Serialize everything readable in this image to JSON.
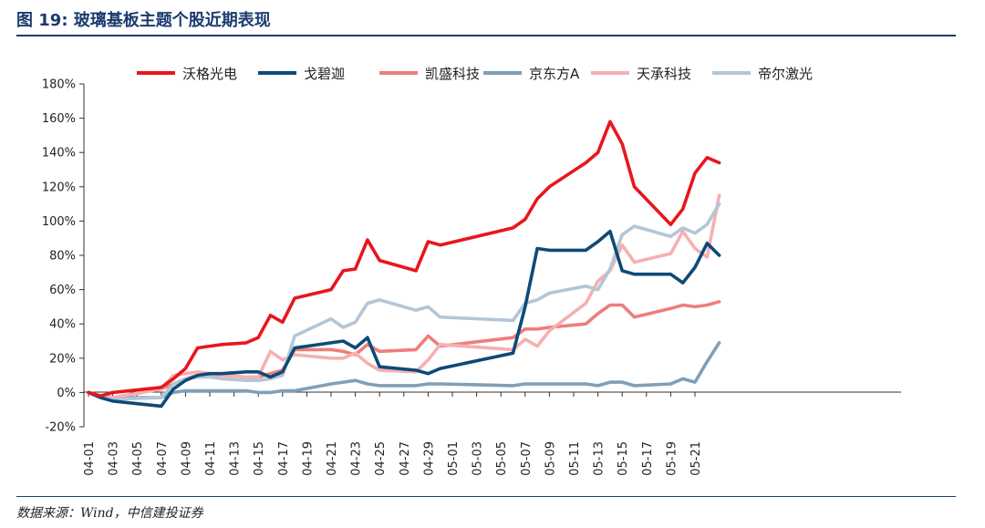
{
  "header": {
    "title": "图 19:  玻璃基板主题个股近期表现"
  },
  "footer": {
    "source": "数据来源：Wind，中信建投证券"
  },
  "chart_data": {
    "type": "line",
    "ylim": [
      -0.2,
      1.8
    ],
    "yticks": [
      -0.2,
      0,
      0.2,
      0.4,
      0.6,
      0.8,
      1.0,
      1.2,
      1.4,
      1.6,
      1.8
    ],
    "ytick_labels": [
      "-20%",
      "0%",
      "20%",
      "40%",
      "60%",
      "80%",
      "100%",
      "120%",
      "140%",
      "160%",
      "180%"
    ],
    "x": [
      "04-01",
      "04-02",
      "04-03",
      "04-07",
      "04-08",
      "04-09",
      "04-10",
      "04-11",
      "04-12",
      "04-14",
      "04-15",
      "04-16",
      "04-17",
      "04-18",
      "04-21",
      "04-22",
      "04-23",
      "04-24",
      "04-25",
      "04-28",
      "04-29",
      "04-30",
      "05-06",
      "05-07",
      "05-08",
      "05-09",
      "05-12",
      "05-13",
      "05-14",
      "05-15",
      "05-16",
      "05-19",
      "05-20",
      "05-21",
      "05-22",
      "05-23"
    ],
    "xtick_labels": [
      "04-01",
      "04-03",
      "04-05",
      "04-07",
      "04-09",
      "04-11",
      "04-13",
      "04-15",
      "04-17",
      "04-19",
      "04-21",
      "04-23",
      "04-25",
      "04-27",
      "04-29",
      "05-01",
      "05-03",
      "05-05",
      "05-07",
      "05-09",
      "05-11",
      "05-13",
      "05-15",
      "05-17",
      "05-19",
      "05-21"
    ],
    "legend_position": "top",
    "series": [
      {
        "name": "沃格光电",
        "color": "#e8161c",
        "values": [
          0,
          -0.02,
          0,
          0.03,
          0.08,
          0.14,
          0.26,
          0.27,
          0.28,
          0.29,
          0.32,
          0.45,
          0.41,
          0.55,
          0.6,
          0.71,
          0.72,
          0.89,
          0.77,
          0.71,
          0.88,
          0.86,
          0.96,
          1.01,
          1.13,
          1.2,
          1.34,
          1.4,
          1.58,
          1.45,
          1.2,
          0.98,
          1.07,
          1.28,
          1.37,
          1.34
        ]
      },
      {
        "name": "戈碧迦",
        "color": "#0d4a78",
        "values": [
          0,
          -0.03,
          -0.05,
          -0.08,
          0.02,
          0.07,
          0.1,
          0.11,
          0.11,
          0.12,
          0.12,
          0.09,
          0.12,
          0.26,
          0.29,
          0.3,
          0.26,
          0.32,
          0.15,
          0.13,
          0.11,
          0.14,
          0.23,
          0.5,
          0.84,
          0.83,
          0.83,
          0.88,
          0.94,
          0.71,
          0.69,
          0.69,
          0.64,
          0.73,
          0.87,
          0.8
        ]
      },
      {
        "name": "凯盛科技",
        "color": "#ef7d7d",
        "values": [
          0,
          -0.02,
          -0.03,
          0.02,
          0.05,
          0.08,
          0.1,
          0.1,
          0.1,
          0.09,
          0.09,
          0.11,
          0.13,
          0.25,
          0.25,
          0.24,
          0.22,
          0.28,
          0.24,
          0.25,
          0.33,
          0.27,
          0.32,
          0.37,
          0.37,
          0.38,
          0.4,
          0.46,
          0.51,
          0.51,
          0.44,
          0.49,
          0.51,
          0.5,
          0.51,
          0.53
        ]
      },
      {
        "name": "京东方A",
        "color": "#7f9fb8",
        "values": [
          0,
          -0.02,
          -0.03,
          -0.03,
          0,
          0.01,
          0.01,
          0.01,
          0.01,
          0.01,
          0,
          0,
          0.01,
          0.01,
          0.05,
          0.06,
          0.07,
          0.05,
          0.04,
          0.04,
          0.05,
          0.05,
          0.04,
          0.05,
          0.05,
          0.05,
          0.05,
          0.04,
          0.06,
          0.06,
          0.04,
          0.05,
          0.08,
          0.06,
          0.18,
          0.29
        ]
      },
      {
        "name": "天承科技",
        "color": "#f6b0b0",
        "values": [
          0,
          -0.02,
          -0.03,
          0.02,
          0.1,
          0.11,
          0.12,
          0.11,
          0.1,
          0.09,
          0.09,
          0.24,
          0.19,
          0.22,
          0.2,
          0.2,
          0.23,
          0.17,
          0.13,
          0.12,
          0.19,
          0.28,
          0.25,
          0.31,
          0.27,
          0.36,
          0.52,
          0.65,
          0.71,
          0.86,
          0.76,
          0.81,
          0.94,
          0.84,
          0.79,
          1.15
        ]
      },
      {
        "name": "帝尔激光",
        "color": "#b3c6d6",
        "values": [
          0,
          -0.03,
          -0.04,
          -0.03,
          0.05,
          0.08,
          0.09,
          0.09,
          0.08,
          0.07,
          0.07,
          0.08,
          0.1,
          0.33,
          0.43,
          0.38,
          0.41,
          0.52,
          0.54,
          0.48,
          0.5,
          0.44,
          0.42,
          0.52,
          0.54,
          0.58,
          0.62,
          0.6,
          0.72,
          0.92,
          0.97,
          0.91,
          0.96,
          0.93,
          0.98,
          1.1
        ]
      }
    ]
  }
}
